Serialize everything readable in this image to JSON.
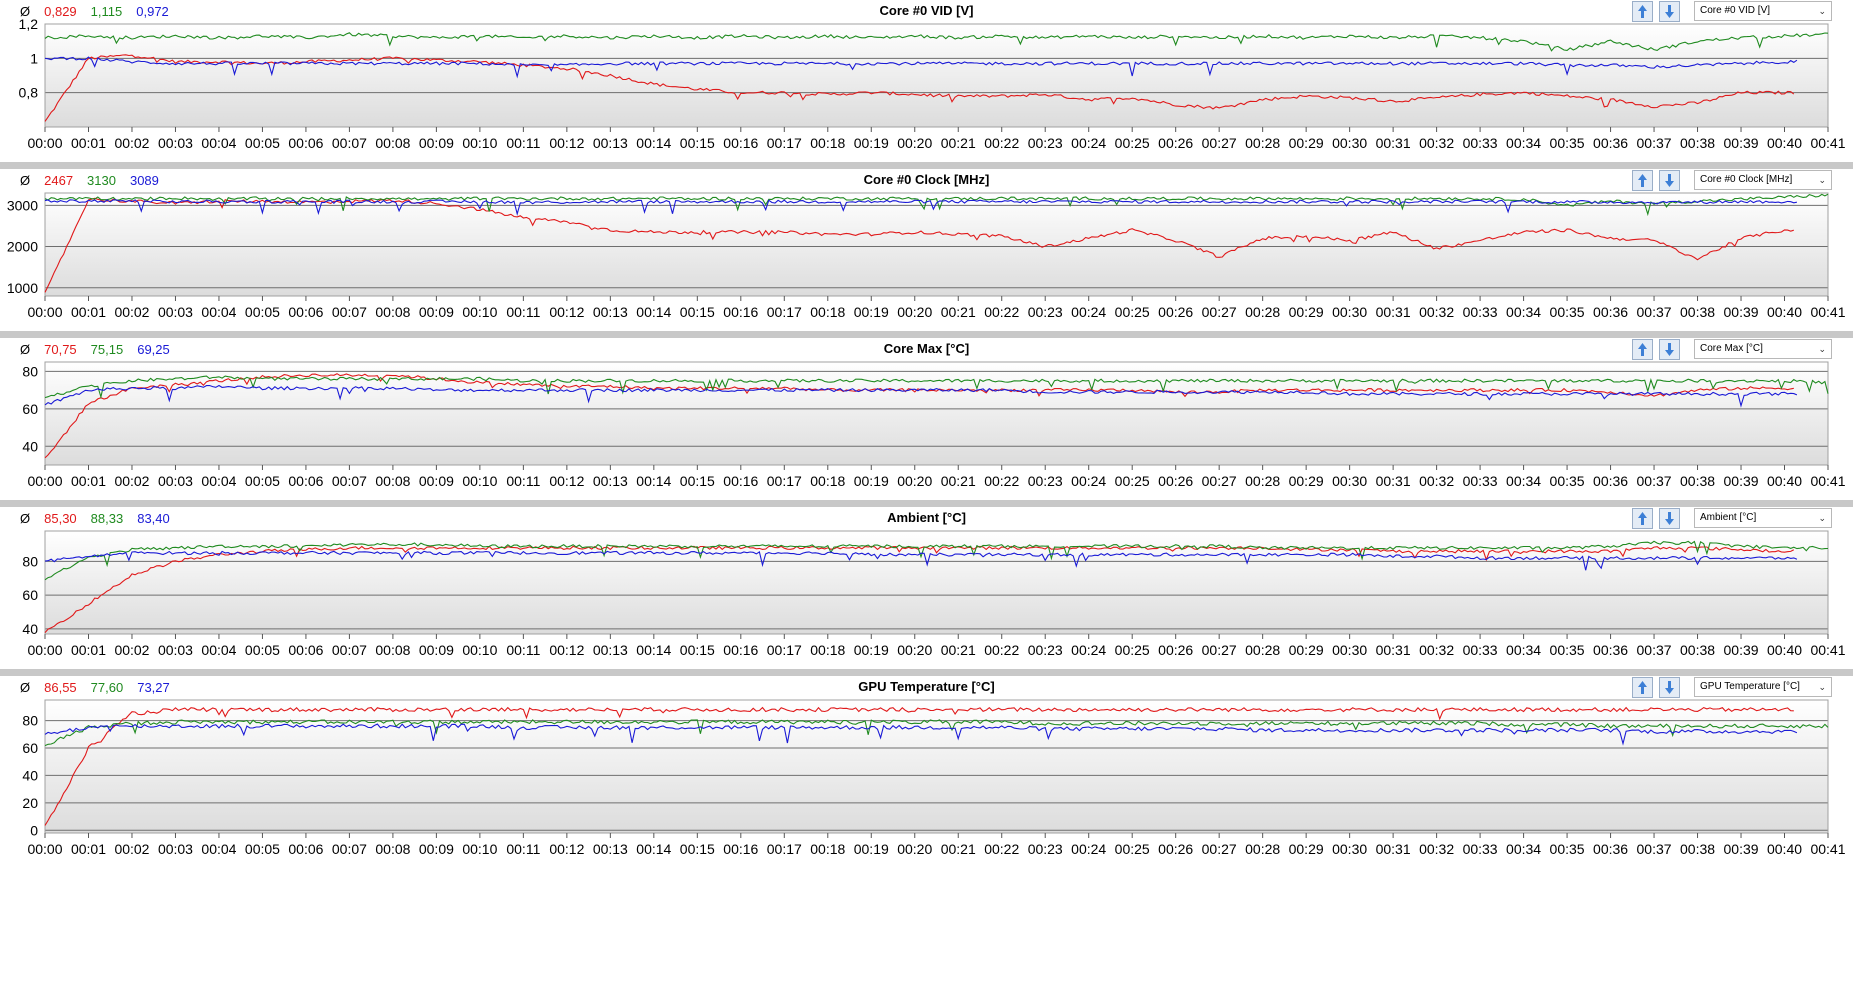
{
  "avg_symbol": "Ø",
  "colors": {
    "red": "#e0191a",
    "green": "#1f8a1f",
    "blue": "#1a1ad6"
  },
  "xticks": [
    "00:00",
    "00:01",
    "00:02",
    "00:03",
    "00:04",
    "00:05",
    "00:06",
    "00:07",
    "00:08",
    "00:09",
    "00:10",
    "00:11",
    "00:12",
    "00:13",
    "00:14",
    "00:15",
    "00:16",
    "00:17",
    "00:18",
    "00:19",
    "00:20",
    "00:21",
    "00:22",
    "00:23",
    "00:24",
    "00:25",
    "00:26",
    "00:27",
    "00:28",
    "00:29",
    "00:30",
    "00:31",
    "00:32",
    "00:33",
    "00:34",
    "00:35",
    "00:36",
    "00:37",
    "00:38",
    "00:39",
    "00:40",
    "00:41"
  ],
  "icons": {
    "up": "arrow-up-icon",
    "down": "arrow-down-icon",
    "dropdown": "chevron-down-icon"
  },
  "chart_data": [
    {
      "type": "line",
      "title": "Core #0 VID [V]",
      "selector": "Core #0 VID [V]",
      "averages": [
        "0,829",
        "1,115",
        "0,972"
      ],
      "yticks": [
        "1,2",
        "1",
        "0,8"
      ],
      "ylim": [
        0.6,
        1.2
      ],
      "grid": true,
      "x_range_minutes": [
        0,
        41
      ],
      "series": [
        {
          "color": "red",
          "end": 40.2,
          "values": [
            0.63,
            1.0,
            1.02,
            0.98,
            0.98,
            0.97,
            0.98,
            0.99,
            1.0,
            0.99,
            0.98,
            0.96,
            0.94,
            0.9,
            0.85,
            0.82,
            0.8,
            0.8,
            0.79,
            0.8,
            0.79,
            0.78,
            0.78,
            0.79,
            0.76,
            0.77,
            0.73,
            0.71,
            0.76,
            0.78,
            0.77,
            0.75,
            0.77,
            0.79,
            0.8,
            0.78,
            0.76,
            0.72,
            0.74,
            0.8,
            0.8,
            0.8
          ]
        },
        {
          "color": "green",
          "end": 41,
          "values": [
            1.12,
            1.13,
            1.12,
            1.13,
            1.12,
            1.13,
            1.12,
            1.14,
            1.13,
            1.12,
            1.13,
            1.12,
            1.13,
            1.12,
            1.13,
            1.12,
            1.13,
            1.12,
            1.13,
            1.12,
            1.13,
            1.12,
            1.13,
            1.12,
            1.13,
            1.12,
            1.13,
            1.12,
            1.13,
            1.12,
            1.13,
            1.12,
            1.13,
            1.12,
            1.1,
            1.05,
            1.1,
            1.05,
            1.1,
            1.12,
            1.13,
            1.14
          ]
        },
        {
          "color": "blue",
          "end": 40.3,
          "values": [
            1.0,
            1.0,
            0.98,
            0.97,
            0.97,
            0.97,
            0.97,
            0.97,
            0.97,
            0.97,
            0.97,
            0.96,
            0.96,
            0.97,
            0.97,
            0.97,
            0.97,
            0.97,
            0.97,
            0.97,
            0.97,
            0.97,
            0.97,
            0.97,
            0.97,
            0.97,
            0.97,
            0.97,
            0.97,
            0.97,
            0.97,
            0.97,
            0.97,
            0.97,
            0.97,
            0.96,
            0.96,
            0.95,
            0.96,
            0.97,
            0.98,
            0.98
          ]
        }
      ]
    },
    {
      "type": "line",
      "title": "Core #0 Clock [MHz]",
      "selector": "Core #0 Clock [MHz]",
      "averages": [
        "2467",
        "3130",
        "3089"
      ],
      "yticks": [
        "3000",
        "2000",
        "1000"
      ],
      "ylim": [
        800,
        3300
      ],
      "grid": true,
      "x_range_minutes": [
        0,
        41
      ],
      "series": [
        {
          "color": "red",
          "end": 40.2,
          "values": [
            850,
            3150,
            3100,
            3050,
            3100,
            3100,
            3080,
            3100,
            3120,
            3050,
            2900,
            2700,
            2600,
            2400,
            2350,
            2350,
            2350,
            2350,
            2300,
            2300,
            2350,
            2300,
            2250,
            2000,
            2200,
            2400,
            2150,
            1750,
            2200,
            2250,
            2150,
            2350,
            1950,
            2150,
            2350,
            2400,
            2200,
            2150,
            1700,
            2200,
            2400,
            2400
          ]
        },
        {
          "color": "green",
          "end": 41,
          "values": [
            3150,
            3180,
            3150,
            3180,
            3150,
            3170,
            3160,
            3170,
            3160,
            3150,
            3170,
            3160,
            3170,
            3160,
            3170,
            3160,
            3170,
            3160,
            3170,
            3160,
            3170,
            3160,
            3170,
            3160,
            3170,
            3160,
            3170,
            3160,
            3170,
            3160,
            3170,
            3160,
            3170,
            3160,
            3150,
            3000,
            3100,
            3050,
            3100,
            3150,
            3200,
            3250
          ]
        },
        {
          "color": "blue",
          "end": 40.3,
          "values": [
            3100,
            3100,
            3100,
            3090,
            3090,
            3090,
            3090,
            3090,
            3090,
            3090,
            3090,
            3080,
            3080,
            3090,
            3090,
            3090,
            3090,
            3090,
            3090,
            3090,
            3090,
            3090,
            3090,
            3090,
            3090,
            3090,
            3090,
            3090,
            3090,
            3090,
            3090,
            3090,
            3090,
            3090,
            3090,
            3080,
            3080,
            3070,
            3080,
            3090,
            3090,
            3090
          ]
        }
      ]
    },
    {
      "type": "line",
      "title": "Core Max [°C]",
      "selector": "Core Max [°C]",
      "averages": [
        "70,75",
        "75,15",
        "69,25"
      ],
      "yticks": [
        "80",
        "60",
        "40"
      ],
      "ylim": [
        30,
        85
      ],
      "grid": true,
      "x_range_minutes": [
        0,
        41
      ],
      "series": [
        {
          "color": "red",
          "end": 40.2,
          "values": [
            33,
            63,
            71,
            73,
            75,
            77,
            78,
            78,
            78,
            76,
            74,
            73,
            72,
            72,
            71,
            71,
            71,
            71,
            70,
            70,
            70,
            70,
            70,
            70,
            70,
            70,
            69,
            69,
            70,
            70,
            70,
            70,
            70,
            70,
            70,
            70,
            69,
            67,
            70,
            71,
            71,
            71
          ]
        },
        {
          "color": "green",
          "end": 41,
          "values": [
            66,
            72,
            75,
            76,
            77,
            76,
            76,
            76,
            76,
            76,
            76,
            75,
            75,
            75,
            75,
            75,
            75,
            75,
            75,
            75,
            75,
            75,
            75,
            75,
            75,
            75,
            75,
            75,
            75,
            75,
            75,
            75,
            75,
            75,
            75,
            75,
            75,
            75,
            75,
            75,
            75,
            74
          ]
        },
        {
          "color": "blue",
          "end": 40.3,
          "values": [
            62,
            70,
            71,
            71,
            72,
            71,
            71,
            71,
            71,
            70,
            70,
            70,
            70,
            70,
            70,
            70,
            70,
            70,
            70,
            70,
            70,
            70,
            70,
            69,
            69,
            69,
            69,
            69,
            69,
            69,
            68,
            68,
            68,
            68,
            68,
            68,
            68,
            68,
            68,
            68,
            68,
            68
          ]
        }
      ]
    },
    {
      "type": "line",
      "title": "Ambient [°C]",
      "selector": "Ambient [°C]",
      "averages": [
        "85,30",
        "88,33",
        "83,40"
      ],
      "yticks": [
        "80",
        "60",
        "40"
      ],
      "ylim": [
        37,
        98
      ],
      "grid": true,
      "x_range_minutes": [
        0,
        41
      ],
      "series": [
        {
          "color": "red",
          "end": 40.2,
          "values": [
            38,
            55,
            72,
            80,
            84,
            86,
            87,
            88,
            88,
            88,
            88,
            88,
            88,
            88,
            88,
            88,
            88,
            88,
            88,
            88,
            88,
            88,
            88,
            88,
            88,
            88,
            88,
            88,
            88,
            87,
            87,
            86,
            86,
            86,
            86,
            86,
            86,
            88,
            88,
            87,
            86,
            86
          ]
        },
        {
          "color": "green",
          "end": 41,
          "values": [
            70,
            82,
            87,
            88,
            89,
            89,
            89,
            90,
            90,
            90,
            89,
            89,
            89,
            89,
            89,
            89,
            89,
            89,
            89,
            89,
            89,
            89,
            89,
            89,
            89,
            89,
            89,
            89,
            88,
            88,
            88,
            88,
            88,
            88,
            88,
            88,
            89,
            91,
            91,
            89,
            88,
            88
          ]
        },
        {
          "color": "blue",
          "end": 40.3,
          "values": [
            80,
            83,
            85,
            85,
            85,
            85,
            85,
            85,
            85,
            85,
            85,
            85,
            85,
            85,
            85,
            85,
            85,
            85,
            85,
            84,
            84,
            84,
            84,
            84,
            84,
            84,
            84,
            84,
            84,
            84,
            84,
            83,
            83,
            82,
            82,
            82,
            82,
            82,
            82,
            82,
            82,
            82
          ]
        }
      ]
    },
    {
      "type": "line",
      "title": "GPU Temperature [°C]",
      "selector": "GPU Temperature [°C]",
      "averages": [
        "86,55",
        "77,60",
        "73,27"
      ],
      "yticks": [
        "80",
        "60",
        "40",
        "20",
        "0"
      ],
      "ylim": [
        -2,
        95
      ],
      "grid": true,
      "x_range_minutes": [
        0,
        41
      ],
      "series": [
        {
          "color": "red",
          "end": 40.2,
          "values": [
            2,
            60,
            85,
            88,
            88,
            88,
            88,
            88,
            88,
            88,
            88,
            88,
            88,
            88,
            88,
            88,
            88,
            88,
            88,
            88,
            88,
            88,
            88,
            88,
            88,
            88,
            88,
            88,
            88,
            88,
            88,
            88,
            88,
            88,
            88,
            88,
            88,
            88,
            88,
            88,
            88,
            88
          ]
        },
        {
          "color": "green",
          "end": 41,
          "values": [
            62,
            75,
            78,
            79,
            79,
            79,
            79,
            79,
            79,
            79,
            79,
            79,
            79,
            79,
            79,
            79,
            79,
            79,
            79,
            79,
            79,
            79,
            79,
            78,
            78,
            78,
            78,
            78,
            78,
            78,
            78,
            78,
            78,
            78,
            77,
            77,
            76,
            76,
            76,
            76,
            76,
            76
          ]
        },
        {
          "color": "blue",
          "end": 40.3,
          "values": [
            70,
            75,
            76,
            76,
            76,
            76,
            76,
            76,
            76,
            76,
            76,
            75,
            75,
            75,
            75,
            75,
            75,
            75,
            75,
            75,
            75,
            75,
            75,
            74,
            74,
            74,
            74,
            74,
            73,
            73,
            73,
            73,
            73,
            73,
            73,
            73,
            73,
            72,
            72,
            72,
            72,
            72
          ]
        }
      ]
    }
  ]
}
